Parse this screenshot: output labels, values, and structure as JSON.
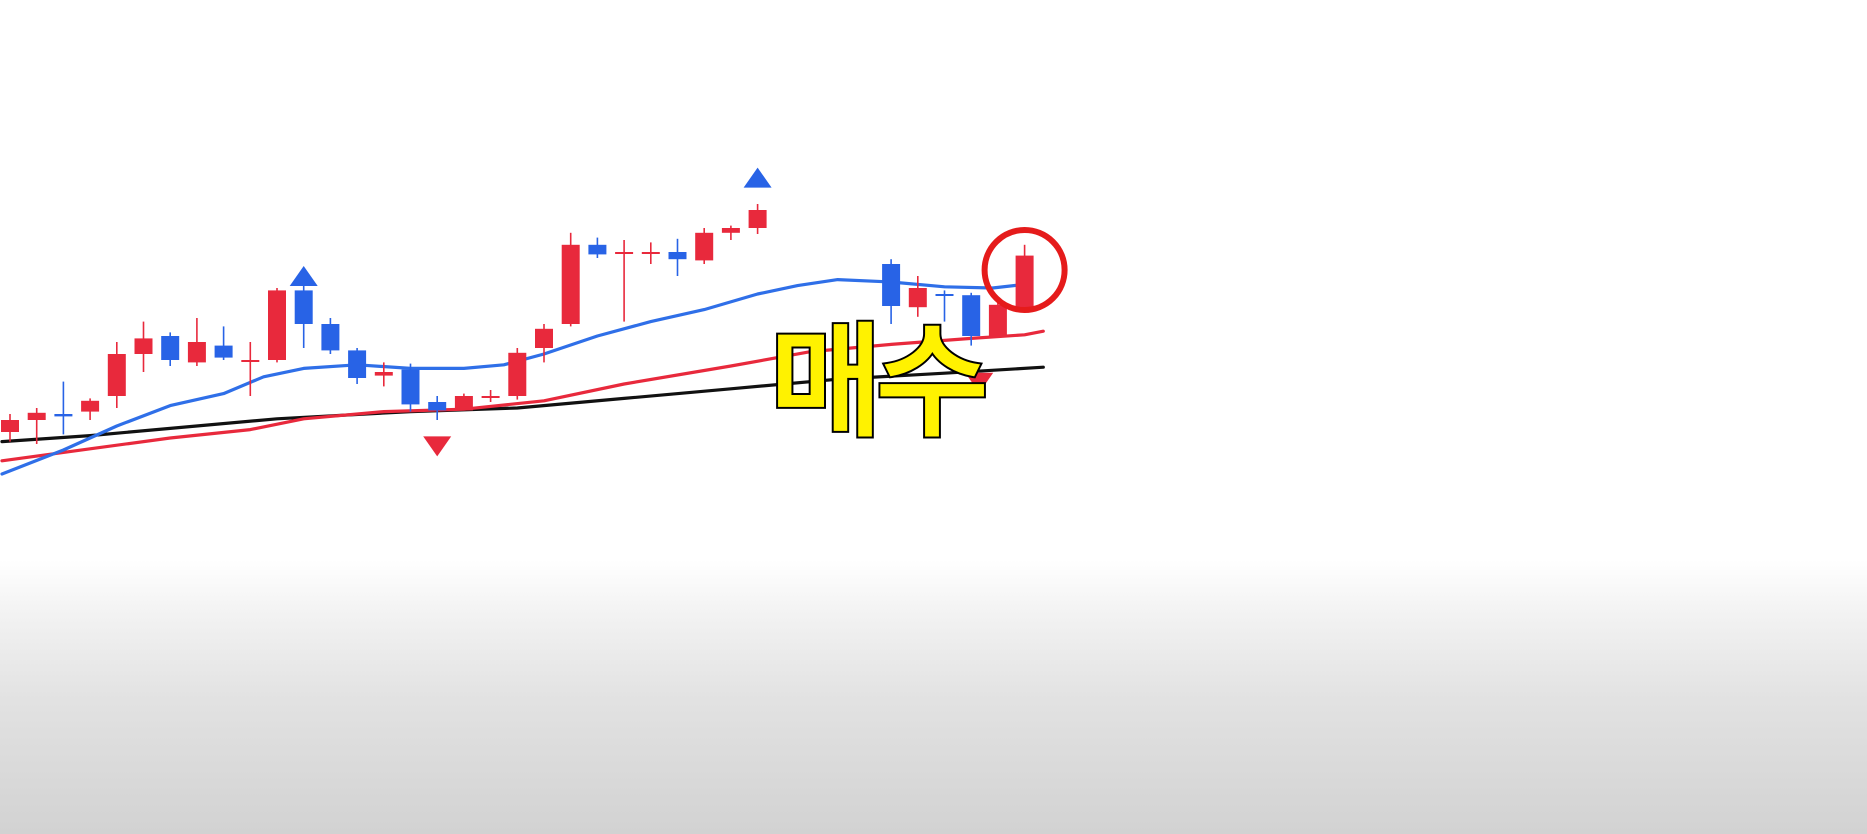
{
  "chart_data": {
    "type": "candlestick",
    "title": "",
    "xlabel": "",
    "ylabel": "",
    "grid": false,
    "legend": "none",
    "ylim": [
      120,
      480
    ],
    "colors": {
      "up": "#e8293c",
      "down": "#2863e6",
      "ma_short": "#2f6fe8",
      "ma_mid": "#e8293c",
      "ma_long": "#111111",
      "highlight_circle": "#e51b1b",
      "label_fill": "#fff200",
      "label_stroke": "#000000"
    },
    "candles": [
      {
        "x": 0,
        "open": 140,
        "high": 155,
        "low": 132,
        "close": 150
      },
      {
        "x": 1,
        "open": 150,
        "high": 160,
        "low": 130,
        "close": 156
      },
      {
        "x": 2,
        "open": 155,
        "high": 182,
        "low": 138,
        "close": 153
      },
      {
        "x": 3,
        "open": 157,
        "high": 168,
        "low": 150,
        "close": 166
      },
      {
        "x": 4,
        "open": 170,
        "high": 215,
        "low": 160,
        "close": 205
      },
      {
        "x": 5,
        "open": 205,
        "high": 232,
        "low": 190,
        "close": 218
      },
      {
        "x": 6,
        "open": 220,
        "high": 223,
        "low": 195,
        "close": 200
      },
      {
        "x": 7,
        "open": 198,
        "high": 235,
        "low": 195,
        "close": 215
      },
      {
        "x": 8,
        "open": 212,
        "high": 228,
        "low": 200,
        "close": 202
      },
      {
        "x": 9,
        "open": 200,
        "high": 215,
        "low": 170,
        "close": 200
      },
      {
        "x": 10,
        "open": 200,
        "high": 260,
        "low": 198,
        "close": 258
      },
      {
        "x": 11,
        "open": 258,
        "high": 262,
        "low": 210,
        "close": 230
      },
      {
        "x": 12,
        "open": 230,
        "high": 235,
        "low": 205,
        "close": 208
      },
      {
        "x": 13,
        "open": 208,
        "high": 210,
        "low": 180,
        "close": 185
      },
      {
        "x": 14,
        "open": 187,
        "high": 198,
        "low": 178,
        "close": 190
      },
      {
        "x": 15,
        "open": 192,
        "high": 197,
        "low": 157,
        "close": 163
      },
      {
        "x": 16,
        "open": 165,
        "high": 170,
        "low": 150,
        "close": 158
      },
      {
        "x": 17,
        "open": 158,
        "high": 172,
        "low": 158,
        "close": 170
      },
      {
        "x": 18,
        "open": 170,
        "high": 175,
        "low": 165,
        "close": 170
      },
      {
        "x": 19,
        "open": 170,
        "high": 210,
        "low": 167,
        "close": 206
      },
      {
        "x": 20,
        "open": 210,
        "high": 230,
        "low": 198,
        "close": 226
      },
      {
        "x": 21,
        "open": 230,
        "high": 306,
        "low": 228,
        "close": 296
      },
      {
        "x": 22,
        "open": 296,
        "high": 302,
        "low": 285,
        "close": 288
      },
      {
        "x": 23,
        "open": 290,
        "high": 300,
        "low": 232,
        "close": 290
      },
      {
        "x": 24,
        "open": 290,
        "high": 298,
        "low": 280,
        "close": 290
      },
      {
        "x": 25,
        "open": 290,
        "high": 301,
        "low": 270,
        "close": 284
      },
      {
        "x": 26,
        "open": 283,
        "high": 310,
        "low": 280,
        "close": 306
      },
      {
        "x": 27,
        "open": 306,
        "high": 312,
        "low": 300,
        "close": 310
      },
      {
        "x": 28,
        "open": 310,
        "high": 330,
        "low": 305,
        "close": 325
      }
    ],
    "hidden_candles_note": "",
    "candles_right": [
      {
        "x": 33,
        "open": 280,
        "high": 284,
        "low": 230,
        "close": 245
      },
      {
        "x": 34,
        "open": 244,
        "high": 270,
        "low": 236,
        "close": 260
      },
      {
        "x": 35,
        "open": 255,
        "high": 258,
        "low": 232,
        "close": 254
      },
      {
        "x": 36,
        "open": 254,
        "high": 256,
        "low": 212,
        "close": 220
      },
      {
        "x": 37,
        "open": 220,
        "high": 250,
        "low": 220,
        "close": 246
      },
      {
        "x": 38,
        "open": 244,
        "high": 296,
        "low": 242,
        "close": 287
      }
    ],
    "ma_short": [
      {
        "x": -0.3,
        "y": 105
      },
      {
        "x": 2,
        "y": 125
      },
      {
        "x": 4,
        "y": 145
      },
      {
        "x": 6,
        "y": 162
      },
      {
        "x": 8,
        "y": 172
      },
      {
        "x": 9.5,
        "y": 186
      },
      {
        "x": 11,
        "y": 193
      },
      {
        "x": 13,
        "y": 196
      },
      {
        "x": 15,
        "y": 193
      },
      {
        "x": 17,
        "y": 193
      },
      {
        "x": 18.5,
        "y": 196
      },
      {
        "x": 20,
        "y": 205
      },
      {
        "x": 22,
        "y": 220
      },
      {
        "x": 24,
        "y": 232
      },
      {
        "x": 26,
        "y": 242
      },
      {
        "x": 28,
        "y": 255
      },
      {
        "x": 29.5,
        "y": 262
      },
      {
        "x": 31,
        "y": 267
      },
      {
        "x": 33,
        "y": 265
      },
      {
        "x": 35,
        "y": 261
      },
      {
        "x": 36.8,
        "y": 260
      },
      {
        "x": 38,
        "y": 263
      }
    ],
    "ma_mid": [
      {
        "x": -0.3,
        "y": 116
      },
      {
        "x": 3,
        "y": 126
      },
      {
        "x": 6,
        "y": 135
      },
      {
        "x": 9,
        "y": 142
      },
      {
        "x": 11,
        "y": 151
      },
      {
        "x": 14,
        "y": 157
      },
      {
        "x": 17,
        "y": 159
      },
      {
        "x": 20,
        "y": 166
      },
      {
        "x": 23,
        "y": 180
      },
      {
        "x": 27,
        "y": 195
      },
      {
        "x": 30,
        "y": 207
      },
      {
        "x": 33,
        "y": 213
      },
      {
        "x": 36,
        "y": 218
      },
      {
        "x": 38,
        "y": 221
      },
      {
        "x": 38.7,
        "y": 224
      }
    ],
    "ma_long": [
      {
        "x": -0.3,
        "y": 132
      },
      {
        "x": 3,
        "y": 137
      },
      {
        "x": 6,
        "y": 143
      },
      {
        "x": 10,
        "y": 151
      },
      {
        "x": 15,
        "y": 157
      },
      {
        "x": 19,
        "y": 160
      },
      {
        "x": 23,
        "y": 168
      },
      {
        "x": 27,
        "y": 176
      },
      {
        "x": 31,
        "y": 184
      },
      {
        "x": 35,
        "y": 189
      },
      {
        "x": 38.7,
        "y": 194
      }
    ],
    "signals": [
      {
        "x": 11,
        "type": "buy-triangle-up",
        "y": 270
      },
      {
        "x": 16,
        "type": "sell-triangle-down",
        "y": 128
      },
      {
        "x": 28,
        "type": "buy-triangle-up",
        "y": 352
      },
      {
        "x": 36.3,
        "type": "sell-triangle-down",
        "y": 181
      }
    ],
    "highlight": {
      "x": 38,
      "y": 275
    }
  },
  "labels": {
    "buy_text": "매수"
  }
}
